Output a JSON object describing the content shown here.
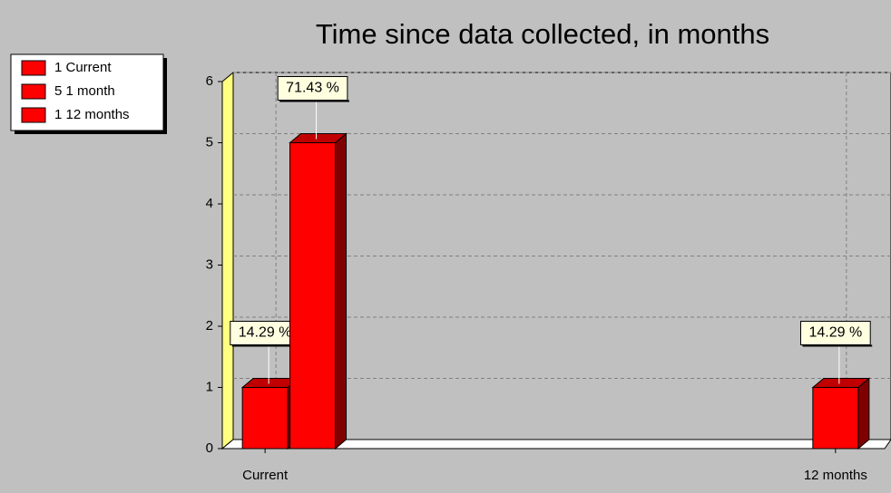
{
  "chart_data": {
    "type": "bar3d",
    "title": "Time since data collected, in months",
    "legend": [
      "1 Current",
      "5 1 month",
      "1 12 months"
    ],
    "x": [
      0,
      1,
      12
    ],
    "values": [
      1,
      5,
      1
    ],
    "data_labels": [
      "14.29 %",
      "71.43 %",
      "14.29 %"
    ],
    "color": "#ff0000",
    "xlim": [
      -0.9,
      12.9
    ],
    "xticks": [
      {
        "value": 0,
        "label": "Current"
      },
      {
        "value": 12,
        "label": "12 months"
      }
    ],
    "ylim": [
      0,
      6
    ],
    "yticks": [
      0,
      1,
      2,
      3,
      4,
      5,
      6
    ],
    "grid": true
  }
}
